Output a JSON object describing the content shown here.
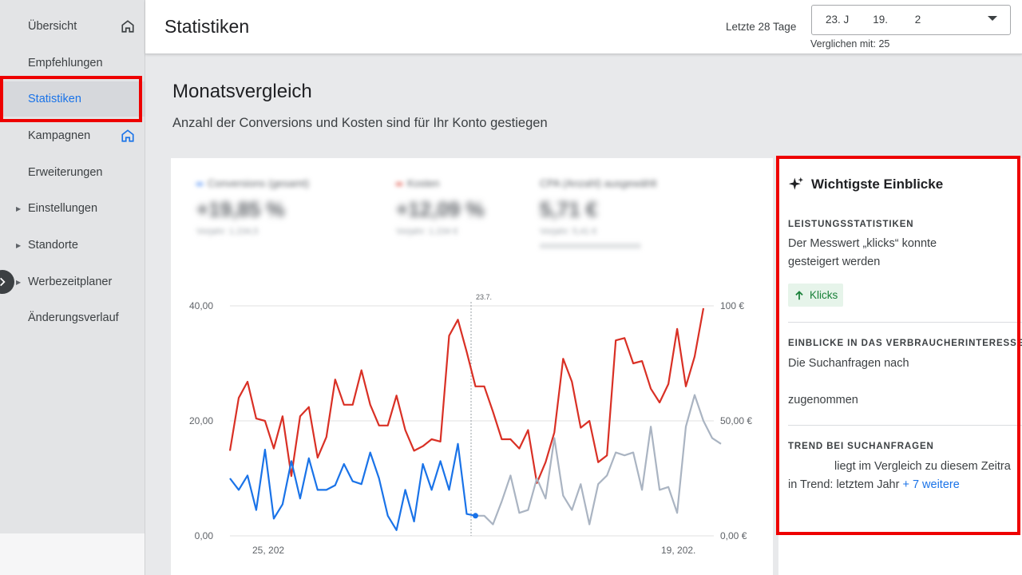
{
  "sidebar": {
    "items": [
      {
        "label": "Übersicht"
      },
      {
        "label": "Empfehlungen"
      },
      {
        "label": "Statistiken"
      },
      {
        "label": "Kampagnen"
      },
      {
        "label": "Erweiterungen"
      },
      {
        "label": "Einstellungen"
      },
      {
        "label": "Standorte"
      },
      {
        "label": "Werbezeitplaner"
      },
      {
        "label": "Änderungsverlauf"
      }
    ]
  },
  "header": {
    "title": "Statistiken",
    "period_label": "Letzte 28 Tage",
    "date_range_value": "23. J        19.         2",
    "compare_label": "Verglichen mit: 25"
  },
  "main": {
    "heading": "Monatsvergleich",
    "subheading": "Anzahl der Conversions und Kosten sind für Ihr Konto gestiegen"
  },
  "metrics": [
    {
      "label": "Conversions (gesamt)",
      "value": "+19,85 %",
      "sub": "Vorjahr: 1.234,5",
      "color": "#4285f4"
    },
    {
      "label": "Kosten",
      "value": "+12,09 %",
      "sub": "Vorjahr: 1.234 €",
      "color": "#db4437"
    },
    {
      "label": "CPA (Anzahl) ausgewählt",
      "value": "5,71 €",
      "sub": "Vorjahr: 5,41 €",
      "sub2": "xxxxxxxxxxxxxxxxxxxxxxx"
    }
  ],
  "chart_data": {
    "type": "line",
    "left_axis_ticks": [
      "40,00",
      "20,00",
      "0,00"
    ],
    "right_axis_ticks": [
      "100 €",
      "50,00 €",
      "0,00 €"
    ],
    "x_tick_labels": [
      "25, 202",
      "19, 202."
    ],
    "marker_label": "23.7.",
    "ylim_left": [
      0,
      40
    ],
    "ylim_right": [
      0,
      100
    ],
    "series": [
      {
        "color": "#d93025",
        "axis": "right",
        "values": [
          37,
          60,
          67,
          51,
          50,
          38,
          52,
          26,
          52,
          56,
          34,
          43,
          68,
          57,
          57,
          72,
          57,
          48,
          48,
          61,
          46,
          37,
          39,
          42,
          41,
          87,
          94,
          80,
          65,
          65,
          54,
          42,
          42,
          38,
          46,
          23,
          32,
          45,
          77,
          67,
          47,
          50,
          32,
          35,
          85,
          86,
          75,
          76,
          64,
          58,
          66,
          90,
          65,
          78,
          99
        ]
      },
      {
        "color": "#1a73e8",
        "axis": "left",
        "values": [
          10,
          8,
          10.5,
          4.5,
          15,
          3,
          5.5,
          13,
          6.5,
          13.5,
          8,
          8,
          8.8,
          12.5,
          9.5,
          9,
          14.5,
          10,
          3.5,
          1,
          8,
          2.5,
          12.5,
          8,
          13,
          8,
          16,
          3.8,
          3.5
        ]
      },
      {
        "color": "#aab4c2",
        "axis": "left",
        "values": [
          3.5,
          2,
          6,
          10.5,
          4,
          4.5,
          10,
          6.5,
          17,
          7,
          4.5,
          9,
          2,
          9,
          10.5,
          14.5,
          14,
          14.5,
          8,
          19,
          8,
          8.5,
          4,
          19,
          24.5,
          20,
          17,
          16
        ]
      }
    ]
  },
  "insights": {
    "title": "Wichtigste Einblicke",
    "s1_label": "LEISTUNGSSTATISTIKEN",
    "s1_line1": "Der Messwert „klicks“ konnte",
    "s1_line2": "gesteigert werden",
    "chip_label": "Klicks",
    "s2_label": "EINBLICKE IN DAS VERBRAUCHERINTERESSE",
    "s2_line1": "Die Suchanfragen nach",
    "s2_line2": "zugenommen",
    "s3_label": "TREND BEI SUCHANFRAGEN",
    "s3_line1": "liegt im Vergleich zu diesem Zeitra",
    "s3_line2": "in Trend: letztem Jahr",
    "s3_link": "+ 7 weitere"
  },
  "colors": {
    "accent": "#1a73e8",
    "highlight_frame": "#ee0000",
    "positive": "#188038"
  }
}
